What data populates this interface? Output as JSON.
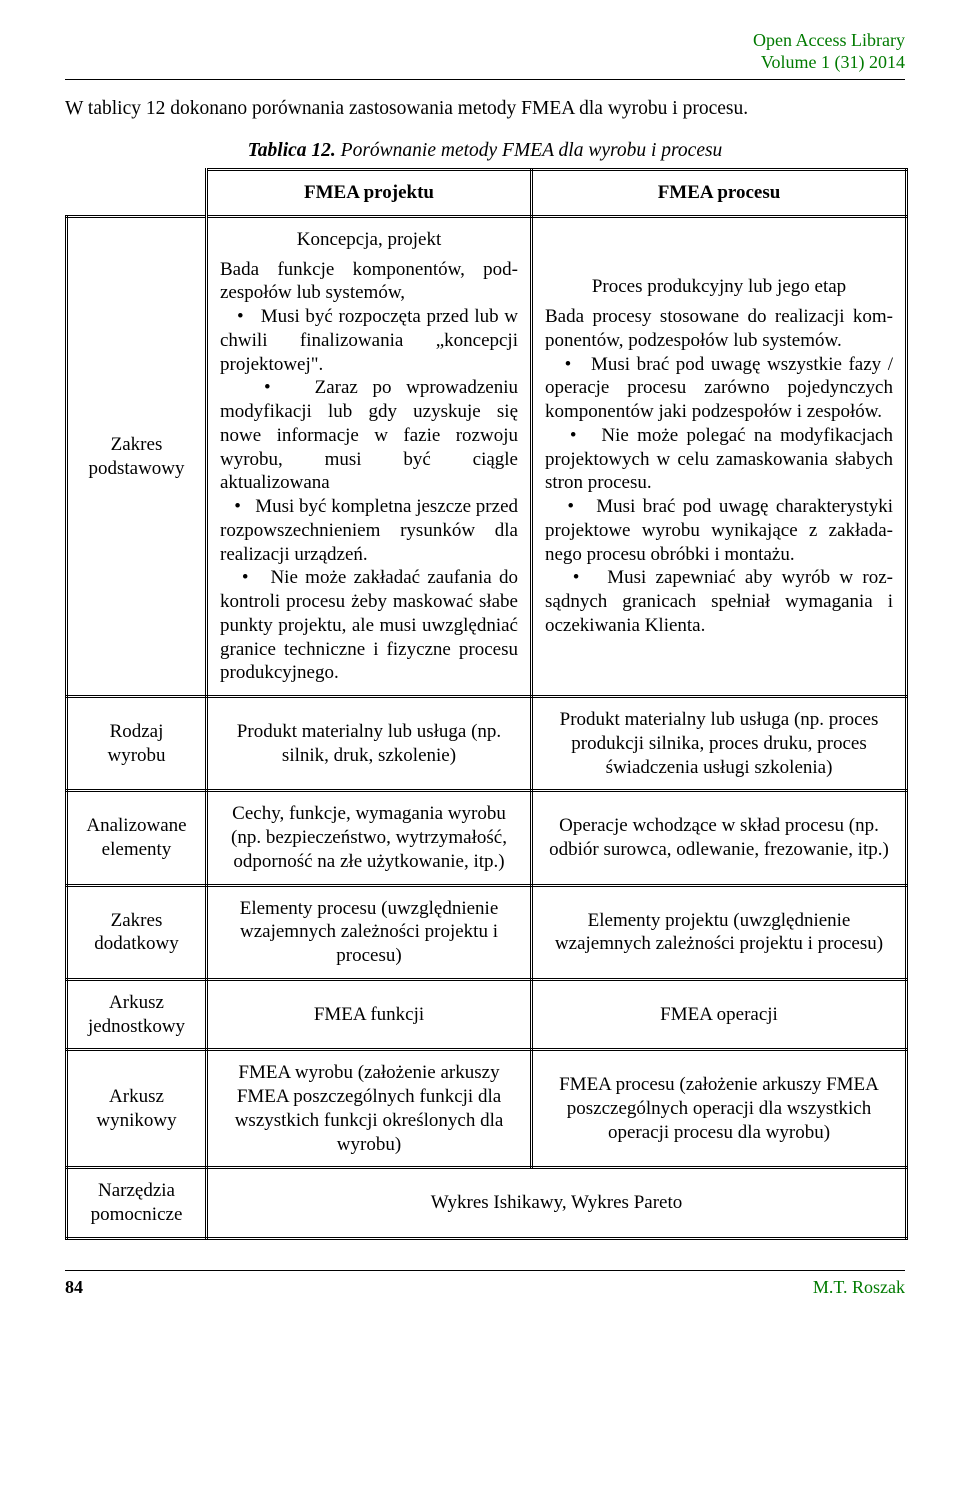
{
  "header": {
    "line1": "Open Access Library",
    "line2": "Volume 1 (31) 2014",
    "color": "#007a00"
  },
  "intro": "W tablicy 12 dokonano porównania zastosowania metody FMEA dla wyrobu i procesu.",
  "caption_prefix": "Tablica 12.",
  "caption_rest": " Porównanie metody FMEA dla wyrobu i procesu",
  "colhead1": "FMEA projektu",
  "colhead2": "FMEA procesu",
  "rows": {
    "zakres_podstawowy": {
      "label": "Zakres podstawowy",
      "col1_head": "Koncepcja, projekt",
      "col1_lead": "Bada funkcje komponentów, pod­zespołów lub systemów,",
      "col1_b1": "Musi być rozpoczęta przed lub w chwili finalizowania „koncepcji projektowej\".",
      "col1_b2": "Zaraz po wprowadzeniu modyfikacji lub gdy uzyskuje się nowe informacje w fazie rozwoju wyrobu, musi być ciągle aktualizowana",
      "col1_b3": "Musi być kompletna jeszcze przed rozpowszechnieniem rysunków dla realizacji urządzeń.",
      "col1_b4": "Nie może zakładać zaufania do kontroli procesu żeby maskować słabe punkty projektu, ale musi uwzględniać granice techniczne i fizyczne procesu produkcyjnego.",
      "col2_head": "Proces produkcyjny lub jego etap",
      "col2_lead": "Bada procesy stosowane do realizacji kom­ponentów, podzespołów lub systemów.",
      "col2_b1": "Musi brać pod uwagę wszystkie fazy / operacje procesu zarówno pojedynczych komponentów jaki podzespołów i zespołów.",
      "col2_b2": "Nie może polegać na modyfikacjach projektowych w celu zamaskowania słabych stron procesu.",
      "col2_b3": "Musi brać pod uwagę charakterystyki projektowe wyrobu wynikające z zakłada­nego procesu obróbki i montażu.",
      "col2_b4": "Musi zapewniać aby wyrób w roz­sądnych granicach spełniał wymagania i oczekiwania Klienta."
    },
    "rodzaj_wyrobu": {
      "label": "Rodzaj wyrobu",
      "col1": "Produkt materialny lub usługa (np. silnik, druk, szkolenie)",
      "col2": "Produkt materialny lub usługa (np. proces produkcji silnika, proces druku, proces świadczenia usługi szkolenia)"
    },
    "analizowane_elementy": {
      "label": "Analizowane elementy",
      "col1": "Cechy, funkcje, wymagania wyrobu (np. bezpieczeństwo, wytrzymałość, odporność na złe użytkowanie, itp.)",
      "col2": "Operacje wchodzące w skład procesu (np. odbiór surowca, odlewanie, frezowanie, itp.)"
    },
    "zakres_dodatkowy": {
      "label": "Zakres dodatkowy",
      "col1": "Elementy procesu (uwzględnienie wzajemnych zależności projektu i procesu)",
      "col2": "Elementy projektu (uwzględnienie wzajemnych zależności projektu i procesu)"
    },
    "arkusz_jednostkowy": {
      "label": "Arkusz jednostkowy",
      "col1": "FMEA funkcji",
      "col2": "FMEA operacji"
    },
    "arkusz_wynikowy": {
      "label": "Arkusz wynikowy",
      "col1": "FMEA wyrobu (założenie arkuszy FMEA poszczególnych funkcji dla wszystkich funkcji określonych dla wyrobu)",
      "col2": "FMEA procesu (założenie arkuszy FMEA poszczególnych operacji dla wszystkich operacji procesu dla wyrobu)"
    },
    "narzedzia_pomocnicze": {
      "label": "Narzędzia pomocnicze",
      "merged": "Wykres Ishikawy, Wykres Pareto"
    }
  },
  "footer": {
    "page": "84",
    "author": "M.T. Roszak"
  }
}
